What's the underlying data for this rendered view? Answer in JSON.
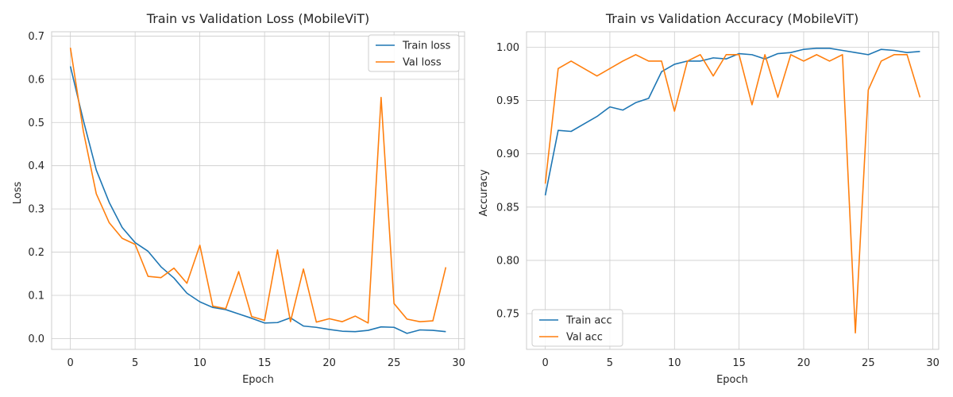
{
  "chart_data": [
    {
      "type": "line",
      "title": "Train vs Validation Loss (MobileViT)",
      "xlabel": "Epoch",
      "ylabel": "Loss",
      "xlim": [
        -1.45,
        30.45
      ],
      "ylim": [
        -0.025,
        0.71
      ],
      "xticks": [
        0,
        5,
        10,
        15,
        20,
        25,
        30
      ],
      "xtick_labels": [
        "0",
        "5",
        "10",
        "15",
        "20",
        "25",
        "30"
      ],
      "yticks": [
        0.0,
        0.1,
        0.2,
        0.3,
        0.4,
        0.5,
        0.6,
        0.7
      ],
      "ytick_labels": [
        "0.0",
        "0.1",
        "0.2",
        "0.3",
        "0.4",
        "0.5",
        "0.6",
        "0.7"
      ],
      "grid": true,
      "legend": "top-right",
      "x": [
        0,
        1,
        2,
        3,
        4,
        5,
        6,
        7,
        8,
        9,
        10,
        11,
        12,
        13,
        14,
        15,
        16,
        17,
        18,
        19,
        20,
        21,
        22,
        23,
        24,
        25,
        26,
        27,
        28,
        29
      ],
      "series": [
        {
          "name": "Train loss",
          "color": "#1f77b4",
          "values": [
            0.63,
            0.505,
            0.39,
            0.315,
            0.257,
            0.222,
            0.202,
            0.166,
            0.14,
            0.105,
            0.085,
            0.072,
            0.067,
            0.057,
            0.047,
            0.036,
            0.037,
            0.048,
            0.029,
            0.026,
            0.021,
            0.017,
            0.016,
            0.019,
            0.027,
            0.026,
            0.012,
            0.02,
            0.019,
            0.016
          ]
        },
        {
          "name": "Val loss",
          "color": "#ff7f0e",
          "values": [
            0.673,
            0.48,
            0.335,
            0.268,
            0.232,
            0.218,
            0.144,
            0.141,
            0.163,
            0.128,
            0.216,
            0.075,
            0.069,
            0.155,
            0.051,
            0.042,
            0.205,
            0.039,
            0.161,
            0.038,
            0.046,
            0.039,
            0.052,
            0.036,
            0.558,
            0.081,
            0.045,
            0.039,
            0.041,
            0.165
          ]
        }
      ]
    },
    {
      "type": "line",
      "title": "Train vs Validation Accuracy (MobileViT)",
      "xlabel": "Epoch",
      "ylabel": "Accuracy",
      "xlim": [
        -1.45,
        30.45
      ],
      "ylim": [
        0.7165,
        1.0145
      ],
      "xticks": [
        0,
        5,
        10,
        15,
        20,
        25,
        30
      ],
      "xtick_labels": [
        "0",
        "5",
        "10",
        "15",
        "20",
        "25",
        "30"
      ],
      "yticks": [
        0.75,
        0.8,
        0.85,
        0.9,
        0.95,
        1.0
      ],
      "ytick_labels": [
        "0.75",
        "0.80",
        "0.85",
        "0.90",
        "0.95",
        "1.00"
      ],
      "grid": true,
      "legend": "bottom-left",
      "x": [
        0,
        1,
        2,
        3,
        4,
        5,
        6,
        7,
        8,
        9,
        10,
        11,
        12,
        13,
        14,
        15,
        16,
        17,
        18,
        19,
        20,
        21,
        22,
        23,
        24,
        25,
        26,
        27,
        28,
        29
      ],
      "series": [
        {
          "name": "Train acc",
          "color": "#1f77b4",
          "values": [
            0.861,
            0.922,
            0.921,
            0.928,
            0.935,
            0.944,
            0.941,
            0.948,
            0.952,
            0.977,
            0.984,
            0.987,
            0.987,
            0.99,
            0.989,
            0.994,
            0.993,
            0.989,
            0.994,
            0.995,
            0.998,
            0.999,
            0.999,
            0.997,
            0.995,
            0.993,
            0.998,
            0.997,
            0.995,
            0.996
          ]
        },
        {
          "name": "Val acc",
          "color": "#ff7f0e",
          "values": [
            0.872,
            0.98,
            0.987,
            0.98,
            0.973,
            0.98,
            0.987,
            0.993,
            0.987,
            0.987,
            0.94,
            0.987,
            0.993,
            0.973,
            0.993,
            0.993,
            0.946,
            0.993,
            0.953,
            0.993,
            0.987,
            0.993,
            0.987,
            0.993,
            0.732,
            0.96,
            0.987,
            0.993,
            0.993,
            0.953
          ]
        }
      ]
    }
  ]
}
